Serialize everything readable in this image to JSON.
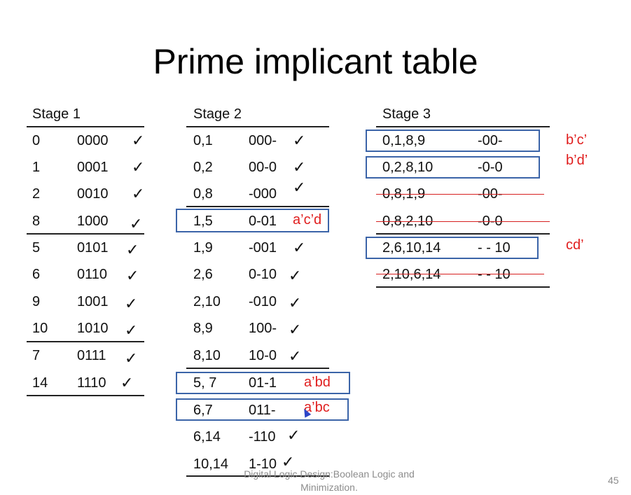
{
  "title": "Prime implicant table",
  "stage1": {
    "header": "Stage 1",
    "rows": [
      {
        "num": "0",
        "bin": "0000",
        "mark": "✓"
      },
      {
        "num": "1",
        "bin": "0001",
        "mark": "✓"
      },
      {
        "num": "2",
        "bin": "0010",
        "mark": "✓"
      },
      {
        "num": "8",
        "bin": "1000",
        "mark": "✓"
      },
      {
        "num": "5",
        "bin": "0101",
        "mark": "✓"
      },
      {
        "num": "6",
        "bin": "0110",
        "mark": "✓"
      },
      {
        "num": "9",
        "bin": "1001",
        "mark": "✓"
      },
      {
        "num": "10",
        "bin": "1010",
        "mark": "✓"
      },
      {
        "num": "7",
        "bin": "0111",
        "mark": "✓"
      },
      {
        "num": "14",
        "bin": "1110",
        "mark": "✓"
      }
    ]
  },
  "stage2": {
    "header": "Stage 2",
    "rows": [
      {
        "pair": "0,1",
        "bin": "000-",
        "mark": "✓",
        "note": ""
      },
      {
        "pair": "0,2",
        "bin": "00-0",
        "mark": "✓",
        "note": ""
      },
      {
        "pair": "0,8",
        "bin": "-000",
        "mark": "✓",
        "note": ""
      },
      {
        "pair": "1,5",
        "bin": "0-01",
        "mark": "",
        "note": "a’c’d"
      },
      {
        "pair": "1,9",
        "bin": "-001",
        "mark": "✓",
        "note": ""
      },
      {
        "pair": "2,6",
        "bin": "0-10",
        "mark": "✓",
        "note": ""
      },
      {
        "pair": "2,10",
        "bin": "-010",
        "mark": "✓",
        "note": ""
      },
      {
        "pair": "8,9",
        "bin": "100-",
        "mark": "✓",
        "note": ""
      },
      {
        "pair": "8,10",
        "bin": "10-0",
        "mark": "✓",
        "note": ""
      },
      {
        "pair": "5, 7",
        "bin": "01-1",
        "mark": "",
        "note": "a’bd"
      },
      {
        "pair": "6,7",
        "bin": "011-",
        "mark": "",
        "note": "a’bc"
      },
      {
        "pair": "6,14",
        "bin": "-110",
        "mark": "✓",
        "note": ""
      },
      {
        "pair": "10,14",
        "bin": "1-10",
        "mark": "✓",
        "note": ""
      }
    ]
  },
  "stage3": {
    "header": "Stage 3",
    "rows": [
      {
        "group": "0,1,8,9",
        "bin": "-00-",
        "note": "b’c’"
      },
      {
        "group": "0,2,8,10",
        "bin": "-0-0",
        "note": "b’d’"
      },
      {
        "group": "0,8,1,9",
        "bin": "-00-",
        "note": ""
      },
      {
        "group": "0,8,2,10",
        "bin": "-0-0",
        "note": ""
      },
      {
        "group": "2,6,10,14",
        "bin": "- - 10",
        "note": "cd’"
      },
      {
        "group": "2,10,6,14",
        "bin": "- - 10",
        "note": ""
      }
    ]
  },
  "footer": {
    "line1": "Digital Logic Design:Boolean Logic and",
    "line2": "Minimization.",
    "page": "45"
  },
  "colors": {
    "annotation": "#e01e1e",
    "box": "#3b64a8",
    "text": "#111111"
  }
}
